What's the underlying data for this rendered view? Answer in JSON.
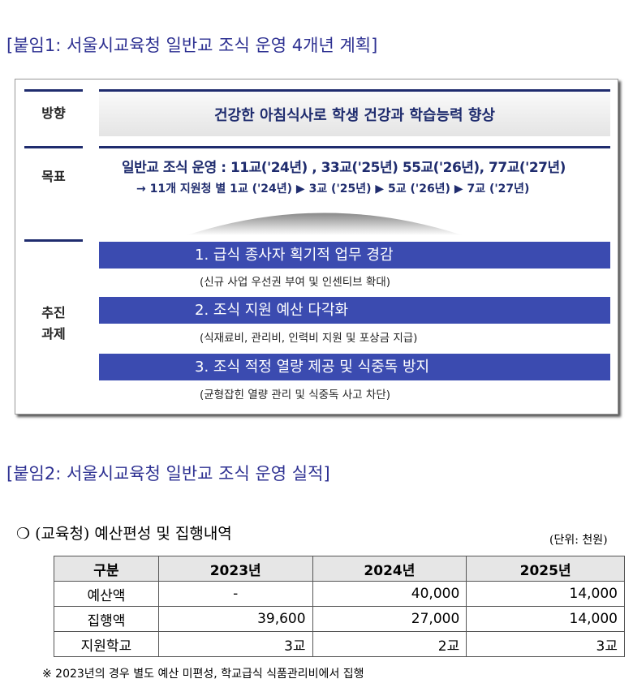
{
  "attachment1": {
    "title": "[붙임1: 서울시교육청 일반교 조식 운영 4개년 계획]",
    "direction_label": "방향",
    "direction": "건강한 아침식사로 학생 건강과 학습능력 향상",
    "goal_label": "목표",
    "goal_main": "일반교 조식 운영 : 11교('24년) , 33교('25년) 55교('26년), 77교('27년)",
    "goal_sub": "→ 11개 지원청 별 1교 ('24년) ▶ 3교 ('25년) ▶ 5교 ('26년) ▶ 7교 ('27년)",
    "tasks_label": [
      "추진",
      "과제"
    ],
    "tasks": [
      {
        "title": "1. 급식 종사자 획기적 업무 경감",
        "note": "(신규 사업 우선권 부여 및 인센티브 확대)"
      },
      {
        "title": "2. 조식 지원 예산 다각화",
        "note": "(식재료비, 관리비, 인력비 지원 및 포상금 지급)"
      },
      {
        "title": "3. 조식 적정 열량 제공 및 식중독 방지",
        "note": "(균형잡힌 열량 관리 및 식중독 사고 차단)"
      }
    ]
  },
  "attachment2": {
    "title": "[붙임2: 서울시교육청 일반교 조식 운영 실적]",
    "subtitle": "❍ (교육청) 예산편성 및 집행내역",
    "unit": "(단위: 천원)",
    "table": {
      "header": [
        "구분",
        "2023년",
        "2024년",
        "2025년"
      ],
      "rows": [
        [
          "예산액",
          "-",
          "40,000",
          "14,000"
        ],
        [
          "집행액",
          "39,600",
          "27,000",
          "14,000"
        ],
        [
          "지원학교",
          "3교",
          "2교",
          "3교"
        ]
      ]
    },
    "footnote": "※ 2023년의 경우 별도 예산 미편성, 학교급식 식품관리비에서 집행"
  }
}
